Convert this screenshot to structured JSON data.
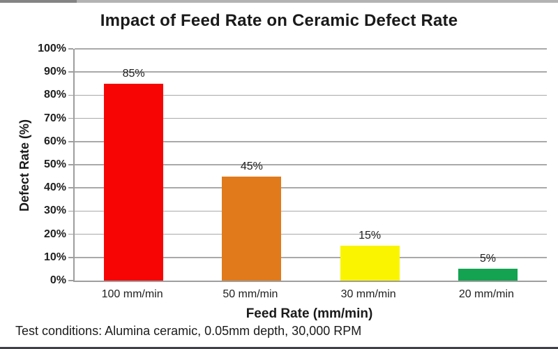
{
  "title": "Impact of Feed Rate on Ceramic Defect Rate",
  "footer_note": "Test conditions: Alumina ceramic, 0.05mm depth, 30,000 RPM",
  "colors": {
    "background": "#ffffff",
    "gridline": "#a9a9a9",
    "axis": "#9e9e9e",
    "text": "#1f1f1f",
    "top_border": "#b3b3b3",
    "bottom_border": "#40404c"
  },
  "chart_data": {
    "type": "bar",
    "title": "Impact of Feed Rate on Ceramic Defect Rate",
    "categories": [
      "100 mm/min",
      "50 mm/min",
      "30 mm/min",
      "20 mm/min"
    ],
    "values": [
      85,
      45,
      15,
      5
    ],
    "value_labels": [
      "85%",
      "45%",
      "15%",
      "5%"
    ],
    "bar_colors": [
      "#f70505",
      "#e07a1a",
      "#faf400",
      "#14a351"
    ],
    "xlabel": "Feed Rate (mm/min)",
    "ylabel": "Defect Rate (%)",
    "ylim": [
      0,
      100
    ],
    "ytick_step": 10,
    "ytick_labels": [
      "0%",
      "10%",
      "20%",
      "30%",
      "40%",
      "50%",
      "60%",
      "70%",
      "80%",
      "90%",
      "100%"
    ],
    "grid": "horizontal",
    "legend": "none",
    "annotation": "Test conditions: Alumina ceramic, 0.05mm depth, 30,000 RPM"
  }
}
